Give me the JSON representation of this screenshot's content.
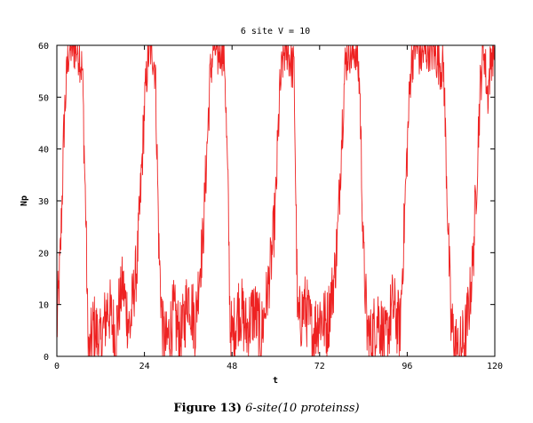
{
  "chart_data": {
    "type": "line",
    "title": "6 site V = 10",
    "xlabel": "t",
    "ylabel": "Np",
    "xlim": [
      0,
      120
    ],
    "ylim": [
      0,
      60
    ],
    "xticks": [
      0,
      24,
      48,
      72,
      96,
      120
    ],
    "yticks": [
      0,
      10,
      20,
      30,
      40,
      50,
      60
    ],
    "grid": false,
    "legend": "none",
    "line_color": "#ee2222",
    "series": [
      {
        "x": [
          0,
          1,
          2,
          3,
          4,
          6,
          7,
          8,
          8.5,
          9,
          10,
          12,
          14,
          16,
          18,
          20,
          21,
          22,
          23,
          24,
          25,
          26,
          27,
          28,
          29,
          30,
          32,
          34,
          36,
          38,
          39,
          40,
          41,
          42,
          43,
          44,
          45,
          46,
          47,
          47.5,
          48,
          50,
          52,
          54,
          56,
          58,
          59,
          60,
          61,
          62,
          63,
          64,
          65,
          65.5,
          66,
          68,
          70,
          72,
          74,
          76,
          77,
          78,
          79,
          80,
          81,
          82,
          83,
          84,
          85,
          86,
          88,
          90,
          92,
          94,
          95,
          96,
          97,
          98,
          100,
          102,
          104,
          106,
          107,
          108,
          110,
          112,
          113,
          114,
          115,
          116,
          117,
          118,
          119,
          120
        ],
        "values": [
          5,
          20,
          45,
          58,
          60,
          59,
          55,
          25,
          3,
          0,
          6,
          2,
          10,
          4,
          14,
          5,
          12,
          18,
          32,
          48,
          58,
          60,
          55,
          20,
          4,
          2,
          8,
          3,
          12,
          6,
          16,
          22,
          38,
          54,
          60,
          58,
          60,
          57,
          28,
          6,
          3,
          10,
          5,
          9,
          4,
          14,
          20,
          30,
          50,
          58,
          60,
          57,
          55,
          30,
          6,
          10,
          4,
          8,
          6,
          15,
          24,
          42,
          56,
          60,
          58,
          60,
          52,
          20,
          5,
          3,
          8,
          2,
          10,
          5,
          22,
          40,
          56,
          60,
          58,
          60,
          58,
          55,
          30,
          6,
          0,
          4,
          10,
          18,
          34,
          52,
          60,
          50,
          58,
          60
        ]
      }
    ]
  },
  "caption": {
    "label": "Figure 13)",
    "text": "6-site(10 proteinss)"
  }
}
